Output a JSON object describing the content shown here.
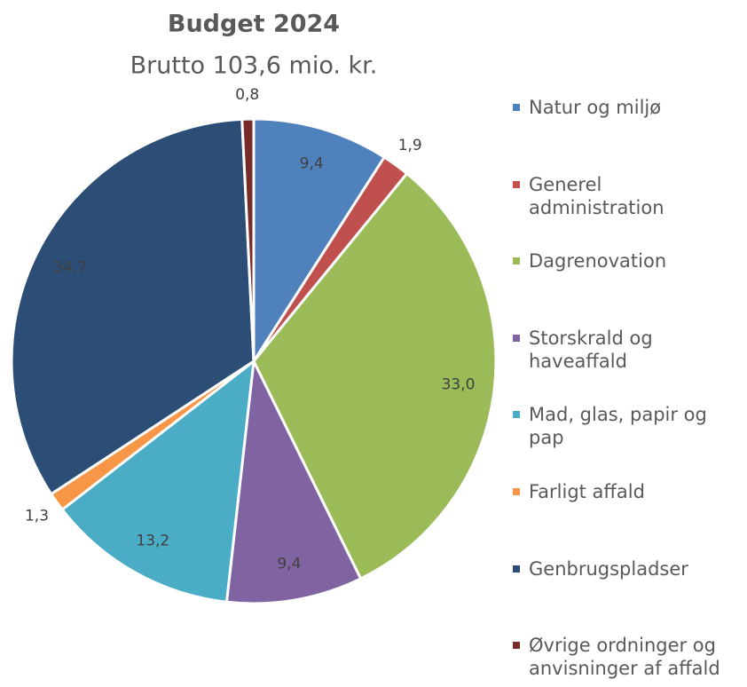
{
  "chart_data": {
    "type": "pie",
    "title": "Budget 2024",
    "subtitle": "Brutto 103,6 mio. kr.",
    "categories": [
      "Natur og miljø",
      "Generel administration",
      "Dagrenovation",
      "Storskrald og haveaffald",
      "Mad, glas, papir og pap",
      "Farligt affald",
      "Genbrugspladser",
      "Øvrige ordninger og anvisninger af affald"
    ],
    "values": [
      9.4,
      1.9,
      33.0,
      9.4,
      13.2,
      1.3,
      34.7,
      0.8
    ],
    "value_labels": [
      "9,4",
      "1,9",
      "33,0",
      "9,4",
      "13,2",
      "1,3",
      "34,7",
      "0,8"
    ],
    "colors": [
      "#4f81bd",
      "#c0504d",
      "#9bbb59",
      "#8064a2",
      "#4bacc6",
      "#f79646",
      "#2c4d75",
      "#772c2a"
    ],
    "legend": "right"
  }
}
